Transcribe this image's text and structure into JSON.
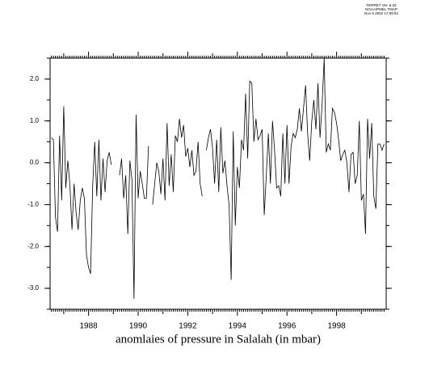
{
  "chart_data": {
    "type": "line",
    "title": "anomlaies of pressure in Salalah (in mbar)",
    "annotations": [
      "FERRET Ver. 5.33",
      "NOAA/PMEL TMAP",
      "Nov  5 2002 17:09:54"
    ],
    "color": "#000000",
    "xlim": [
      1986.45,
      2000.0
    ],
    "xticks": [
      1988,
      1990,
      1992,
      1994,
      1996,
      1998
    ],
    "ylim": [
      -3.5,
      2.5
    ],
    "yticks": [
      {
        "value": -3,
        "label": "-3.0"
      },
      {
        "value": -2,
        "label": "-2.0"
      },
      {
        "value": -1,
        "label": "-1.0"
      },
      {
        "value": 0,
        "label": "0.0"
      },
      {
        "value": 1,
        "label": "1.0"
      },
      {
        "value": 2,
        "label": "2.0"
      }
    ],
    "x": [
      1986.5,
      1986.583,
      1986.667,
      1986.75,
      1986.833,
      1986.917,
      1987,
      1987.083,
      1987.167,
      1987.25,
      1987.333,
      1987.417,
      1987.5,
      1987.583,
      1987.667,
      1987.75,
      1987.833,
      1987.917,
      1988,
      1988.083,
      1988.167,
      1988.25,
      1988.333,
      1988.417,
      1988.5,
      1988.583,
      1988.667,
      1988.75,
      1988.833,
      1988.917,
      1989,
      1989.083,
      1989.167,
      1989.25,
      1989.333,
      1989.417,
      1989.5,
      1989.583,
      1989.667,
      1989.75,
      1989.833,
      1989.917,
      1990,
      1990.083,
      1990.167,
      1990.25,
      1990.333,
      1990.417,
      1990.5,
      1990.583,
      1990.667,
      1990.75,
      1990.833,
      1990.917,
      1991,
      1991.083,
      1991.167,
      1991.25,
      1991.333,
      1991.417,
      1991.5,
      1991.583,
      1991.667,
      1991.75,
      1991.833,
      1991.917,
      1992,
      1992.083,
      1992.167,
      1992.25,
      1992.333,
      1992.417,
      1992.5,
      1992.583,
      1992.667,
      1992.75,
      1992.833,
      1992.917,
      1993,
      1993.083,
      1993.167,
      1993.25,
      1993.333,
      1993.417,
      1993.5,
      1993.583,
      1993.667,
      1993.75,
      1993.833,
      1993.917,
      1994,
      1994.083,
      1994.167,
      1994.25,
      1994.333,
      1994.417,
      1994.5,
      1994.583,
      1994.667,
      1994.75,
      1994.833,
      1994.917,
      1995,
      1995.083,
      1995.167,
      1995.25,
      1995.333,
      1995.417,
      1995.5,
      1995.583,
      1995.667,
      1995.75,
      1995.833,
      1995.917,
      1996,
      1996.083,
      1996.167,
      1996.25,
      1996.333,
      1996.417,
      1996.5,
      1996.583,
      1996.667,
      1996.75,
      1996.833,
      1996.917,
      1997,
      1997.083,
      1997.167,
      1997.25,
      1997.333,
      1997.417,
      1997.5,
      1997.583,
      1997.667,
      1997.75,
      1997.833,
      1997.917,
      1998,
      1998.083,
      1998.167,
      1998.25,
      1998.333,
      1998.417,
      1998.5,
      1998.583,
      1998.667,
      1998.75,
      1998.833,
      1998.917,
      1999,
      1999.083,
      1999.167,
      1999.25,
      1999.333,
      1999.417,
      1999.5,
      1999.583,
      1999.667,
      1999.75,
      1999.833,
      1999.917
    ],
    "values": [
      0.6,
      0.55,
      -1.3,
      -1.65,
      0.65,
      -0.9,
      1.35,
      -0.6,
      0.05,
      -0.55,
      -1.6,
      -0.5,
      -1.2,
      -1.6,
      -0.9,
      -0.6,
      -0.85,
      -2.2,
      -2.5,
      -2.65,
      -0.55,
      0.5,
      -0.8,
      0.55,
      -0.9,
      0.1,
      -0.7,
      0.05,
      0.25,
      -0.05,
      null,
      null,
      null,
      -0.3,
      0.1,
      -0.85,
      -0.3,
      -1.7,
      0.05,
      -0.4,
      -3.25,
      1.15,
      -0.85,
      -0.2,
      -0.5,
      -0.85,
      -0.85,
      0.4,
      null,
      -1.0,
      -0.5,
      0.0,
      -0.2,
      -0.75,
      0.1,
      -0.9,
      0.95,
      -0.55,
      0.2,
      -0.7,
      0.65,
      0.5,
      1.05,
      0.6,
      0.9,
      0.15,
      0.35,
      -0.1,
      0.3,
      -0.3,
      -0.2,
      0.5,
      -0.5,
      -0.8,
      null,
      0.3,
      0.6,
      0.8,
      0.35,
      -0.5,
      0.55,
      -0.7,
      0.85,
      -0.25,
      0.05,
      -0.55,
      -1.0,
      -2.8,
      0.75,
      -1.5,
      -0.1,
      -0.6,
      0.55,
      0.3,
      1.65,
      0.1,
      1.95,
      1.9,
      0.5,
      1.05,
      0.55,
      0.65,
      0.8,
      -1.25,
      -0.3,
      0.7,
      -0.5,
      1.0,
      0.3,
      -0.6,
      -0.55,
      -0.8,
      0.7,
      -0.5,
      0.9,
      -0.5,
      0.4,
      0.7,
      0.6,
      0.8,
      1.3,
      0.75,
      1.3,
      1.85,
      0.7,
      0.05,
      1.0,
      1.5,
      0.8,
      1.9,
      0.6,
      1.4,
      2.5,
      0.25,
      0.45,
      0.3,
      1.3,
      1.2,
      0.95,
      0.55,
      0.05,
      0.2,
      0.3,
      0.0,
      -0.7,
      0.2,
      0.25,
      -0.5,
      -0.3,
      1.0,
      -0.9,
      -0.75,
      -1.7,
      1.05,
      0.1,
      0.95,
      -0.8,
      -1.1,
      0.45,
      0.45,
      0.3,
      0.45
    ]
  }
}
